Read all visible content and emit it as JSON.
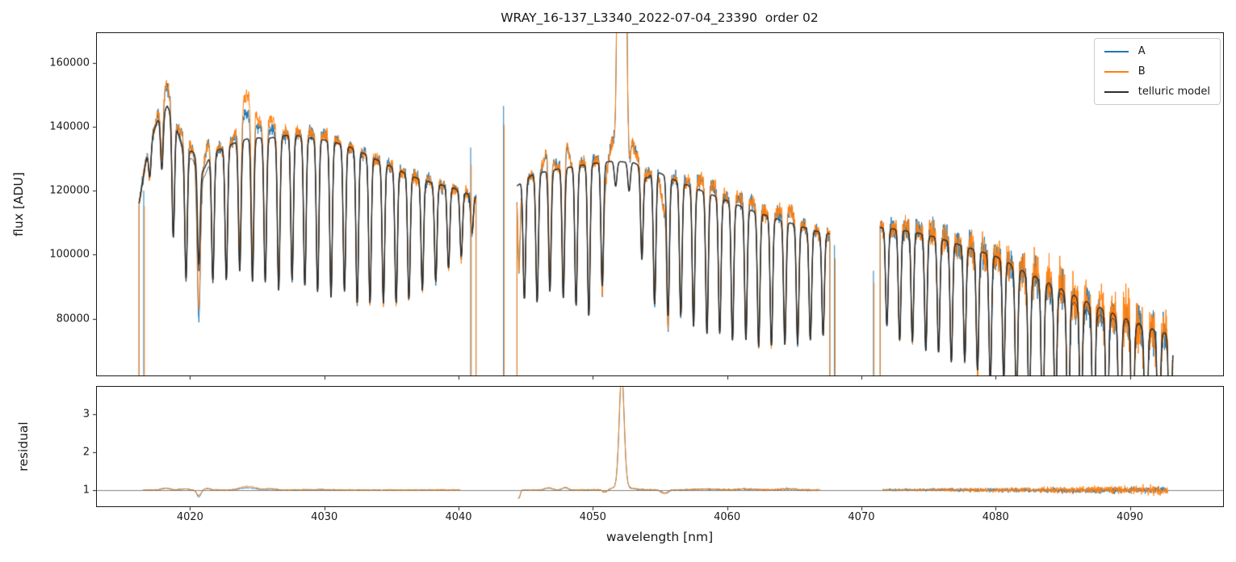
{
  "chart_data": {
    "type": "line",
    "title": "WRAY_16-137_L3340_2022-07-04_23390  order 02",
    "xlabel": "wavelength [nm]",
    "xlim": [
      4013.0,
      4097.0
    ],
    "xticks": [
      4020,
      4030,
      4040,
      4050,
      4060,
      4070,
      4080,
      4090
    ],
    "panels": [
      {
        "name": "flux",
        "ylabel": "flux [ADU]",
        "ylim": [
          62000,
          169500
        ],
        "yticks": [
          80000,
          100000,
          120000,
          140000,
          160000
        ]
      },
      {
        "name": "residual",
        "ylabel": "residual",
        "ylim": [
          0.55,
          3.75
        ],
        "yticks": [
          1,
          2,
          3
        ],
        "baseline": 1
      }
    ],
    "legend_position": "upper right",
    "series": [
      {
        "name": "A",
        "color": "#1f77b4"
      },
      {
        "name": "B",
        "color": "#ff7f0e"
      },
      {
        "name": "telluric model",
        "color": "#2e2e2e"
      }
    ],
    "grid": false,
    "segments": [
      [
        4016.2,
        4041.3
      ],
      [
        4044.35,
        4067.65
      ],
      [
        4071.4,
        4093.2
      ]
    ],
    "residual_segments": [
      [
        4016.5,
        4040.1
      ],
      [
        4044.45,
        4066.9
      ],
      [
        4071.6,
        4092.8
      ]
    ],
    "continuum_points": [
      [
        4016.2,
        116000
      ],
      [
        4016.9,
        134000
      ],
      [
        4017.6,
        142000
      ],
      [
        4018.3,
        146500
      ],
      [
        4019.0,
        141000
      ],
      [
        4019.8,
        136500
      ],
      [
        4020.7,
        131500
      ],
      [
        4021.6,
        132000
      ],
      [
        4022.6,
        133500
      ],
      [
        4023.6,
        135500
      ],
      [
        4024.6,
        136500
      ],
      [
        4026.0,
        136500
      ],
      [
        4027.5,
        137500
      ],
      [
        4029.0,
        136500
      ],
      [
        4030.5,
        135500
      ],
      [
        4032.0,
        133500
      ],
      [
        4033.5,
        130500
      ],
      [
        4035.0,
        127500
      ],
      [
        4036.5,
        124500
      ],
      [
        4038.0,
        122500
      ],
      [
        4039.5,
        121000
      ],
      [
        4041.3,
        118000
      ],
      [
        4044.35,
        121500
      ],
      [
        4045.5,
        125000
      ],
      [
        4047.0,
        126500
      ],
      [
        4048.5,
        127500
      ],
      [
        4050.0,
        128500
      ],
      [
        4051.5,
        129200
      ],
      [
        4053.0,
        128800
      ],
      [
        4054.5,
        126500
      ],
      [
        4056.0,
        123500
      ],
      [
        4057.5,
        121000
      ],
      [
        4059.0,
        118500
      ],
      [
        4060.5,
        116000
      ],
      [
        4062.0,
        113500
      ],
      [
        4063.5,
        111500
      ],
      [
        4065.0,
        109500
      ],
      [
        4066.5,
        107500
      ],
      [
        4067.65,
        106500
      ],
      [
        4071.4,
        108500
      ],
      [
        4072.5,
        108000
      ],
      [
        4074.0,
        107000
      ],
      [
        4075.5,
        105500
      ],
      [
        4077.0,
        103500
      ],
      [
        4078.5,
        101500
      ],
      [
        4080.0,
        99500
      ],
      [
        4081.5,
        97000
      ],
      [
        4083.0,
        94500
      ],
      [
        4084.5,
        91500
      ],
      [
        4086.0,
        88500
      ],
      [
        4087.5,
        85500
      ],
      [
        4089.0,
        83000
      ],
      [
        4090.5,
        80500
      ],
      [
        4092.0,
        78500
      ],
      [
        4093.2,
        77200
      ]
    ],
    "absorption_lines": [
      [
        4017.0,
        0.08
      ],
      [
        4017.9,
        0.12
      ],
      [
        4018.75,
        0.26
      ],
      [
        4019.7,
        0.3
      ],
      [
        4020.65,
        0.24
      ],
      [
        4021.7,
        0.3
      ],
      [
        4022.7,
        0.31
      ],
      [
        4023.7,
        0.3
      ],
      [
        4024.65,
        0.33
      ],
      [
        4025.6,
        0.33
      ],
      [
        4026.6,
        0.35
      ],
      [
        4027.6,
        0.33
      ],
      [
        4028.55,
        0.34
      ],
      [
        4029.5,
        0.35
      ],
      [
        4030.5,
        0.36
      ],
      [
        4031.5,
        0.34
      ],
      [
        4032.45,
        0.36
      ],
      [
        4033.4,
        0.35
      ],
      [
        4034.4,
        0.34
      ],
      [
        4035.35,
        0.33
      ],
      [
        4036.3,
        0.31
      ],
      [
        4037.3,
        0.28
      ],
      [
        4038.3,
        0.25
      ],
      [
        4039.25,
        0.21
      ],
      [
        4040.2,
        0.17
      ],
      [
        4041.0,
        0.1
      ],
      [
        4044.9,
        0.3
      ],
      [
        4045.85,
        0.32
      ],
      [
        4046.8,
        0.3
      ],
      [
        4047.8,
        0.32
      ],
      [
        4048.75,
        0.34
      ],
      [
        4049.7,
        0.37
      ],
      [
        4050.7,
        0.3
      ],
      [
        4051.7,
        0.06
      ],
      [
        4052.7,
        0.07
      ],
      [
        4053.65,
        0.22
      ],
      [
        4054.6,
        0.33
      ],
      [
        4055.6,
        0.35
      ],
      [
        4056.55,
        0.34
      ],
      [
        4057.5,
        0.36
      ],
      [
        4058.5,
        0.37
      ],
      [
        4059.45,
        0.36
      ],
      [
        4060.4,
        0.37
      ],
      [
        4061.4,
        0.36
      ],
      [
        4062.35,
        0.37
      ],
      [
        4063.3,
        0.36
      ],
      [
        4064.3,
        0.35
      ],
      [
        4065.25,
        0.34
      ],
      [
        4066.2,
        0.32
      ],
      [
        4067.15,
        0.3
      ],
      [
        4071.9,
        0.28
      ],
      [
        4072.85,
        0.32
      ],
      [
        4073.8,
        0.32
      ],
      [
        4074.8,
        0.34
      ],
      [
        4075.75,
        0.34
      ],
      [
        4076.7,
        0.36
      ],
      [
        4077.7,
        0.35
      ],
      [
        4078.65,
        0.37
      ],
      [
        4079.6,
        0.4
      ],
      [
        4080.6,
        0.38
      ],
      [
        4081.55,
        0.42
      ],
      [
        4082.5,
        0.44
      ],
      [
        4083.5,
        0.52
      ],
      [
        4084.45,
        0.44
      ],
      [
        4085.4,
        0.52
      ],
      [
        4086.35,
        0.47
      ],
      [
        4087.3,
        0.58
      ],
      [
        4088.3,
        0.5
      ],
      [
        4089.25,
        0.62
      ],
      [
        4090.2,
        0.54
      ],
      [
        4091.2,
        0.66
      ],
      [
        4092.15,
        0.58
      ],
      [
        4093.0,
        0.62
      ]
    ],
    "line_sigma": 0.095,
    "model_features": [
      [
        4019.6,
        0.55,
        0.035
      ],
      [
        4020.9,
        0.5,
        0.04
      ],
      [
        4054.0,
        0.4,
        0.025
      ]
    ],
    "model_secondary": [
      [
        4020.7,
        1.3,
        0.022
      ],
      [
        4087.0,
        2.6,
        0.032
      ]
    ],
    "data_features": [
      [
        4018.2,
        0.5,
        0.045,
        0.045
      ],
      [
        4019.6,
        0.45,
        0.03,
        0.03
      ],
      [
        4020.65,
        0.22,
        -0.18,
        -0.14
      ],
      [
        4021.3,
        0.3,
        0.04,
        0.04
      ],
      [
        4024.3,
        0.8,
        0.06,
        0.1
      ],
      [
        4026.0,
        0.6,
        0.02,
        0.04
      ],
      [
        4029.5,
        1.5,
        0.012,
        0.012
      ],
      [
        4044.5,
        0.12,
        -0.22,
        -0.22
      ],
      [
        4046.7,
        0.4,
        0.05,
        0.06
      ],
      [
        4047.95,
        0.3,
        0.06,
        0.07
      ],
      [
        4050.9,
        0.28,
        -0.07,
        -0.07
      ],
      [
        4055.35,
        0.35,
        -0.09,
        -0.09
      ],
      [
        4058.5,
        1.2,
        0.025,
        0.03
      ],
      [
        4061.5,
        1.0,
        0.025,
        0.03
      ],
      [
        4064.5,
        0.8,
        0.03,
        0.04
      ],
      [
        4075.0,
        2.0,
        0.008,
        0.012
      ],
      [
        4086.5,
        2.5,
        -0.02,
        0.012
      ]
    ],
    "emission_line": {
      "center": 4052.15,
      "sigma": 0.26,
      "amp": 2.9,
      "wing_amp": 0.15,
      "wing_gamma": 0.5
    },
    "edge_spikes": [
      [
        4016.55,
        120000
      ],
      [
        4040.9,
        133500
      ],
      [
        4043.35,
        146500
      ],
      [
        4068.0,
        103000
      ],
      [
        4070.9,
        95000
      ]
    ],
    "noise": {
      "seed": 20220704,
      "sigma_flux": [
        [
          0.007,
          0.009
        ],
        [
          0.007,
          0.012
        ],
        [
          0.013,
          0.045
        ]
      ],
      "sigma_b_scale": [
        1.06,
        1.1,
        1.45
      ]
    },
    "baseline_color": "#808080",
    "background": "#ffffff"
  }
}
